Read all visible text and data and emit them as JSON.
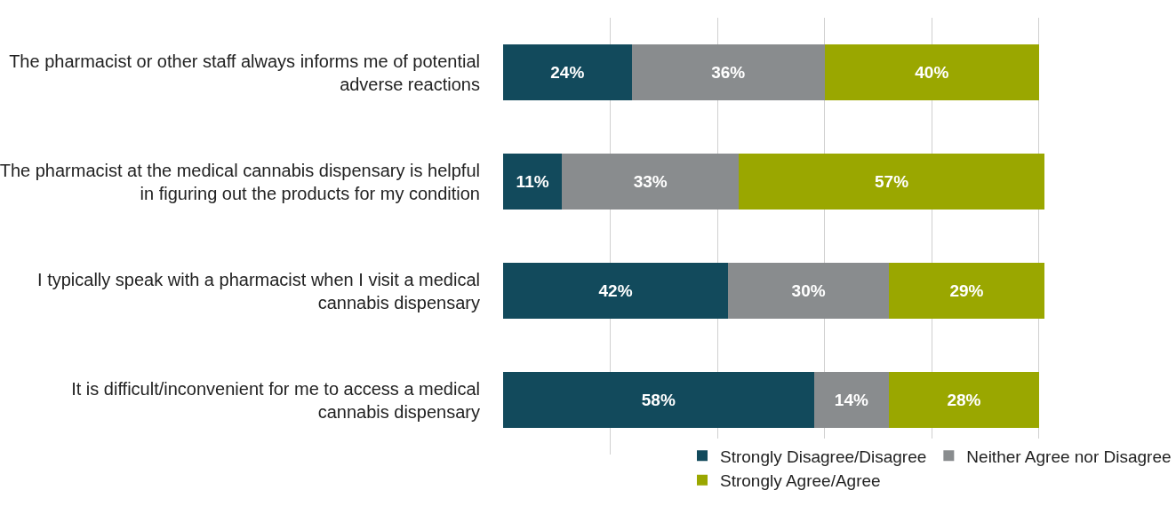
{
  "chart_data": {
    "type": "bar",
    "orientation": "horizontal",
    "stacked": true,
    "categories": [
      "The pharmacist or other staff always informs me of potential adverse reactions",
      "The pharmacist at the medical cannabis dispensary is helpful in figuring out the products for my condition",
      "I typically speak with a pharmacist when I visit a medical cannabis dispensary",
      "It is difficult/inconvenient for me to access a medical cannabis dispensary"
    ],
    "series": [
      {
        "name": "Strongly Disagree/Disagree",
        "color": "#124a5c",
        "values": [
          24,
          11,
          42,
          58
        ],
        "value_labels": [
          "24%",
          "11%",
          "42%",
          "58%"
        ]
      },
      {
        "name": "Neither Agree nor Disagree",
        "color": "#898c8e",
        "values": [
          36,
          33,
          30,
          14
        ],
        "value_labels": [
          "36%",
          "33%",
          "30%",
          "14%"
        ]
      },
      {
        "name": "Strongly Agree/Agree",
        "color": "#9aa700",
        "values": [
          40,
          57,
          29,
          28
        ],
        "value_labels": [
          "40%",
          "57%",
          "29%",
          "28%"
        ]
      }
    ],
    "grid": "x",
    "legend": "bottom",
    "tick_labels": "y"
  }
}
